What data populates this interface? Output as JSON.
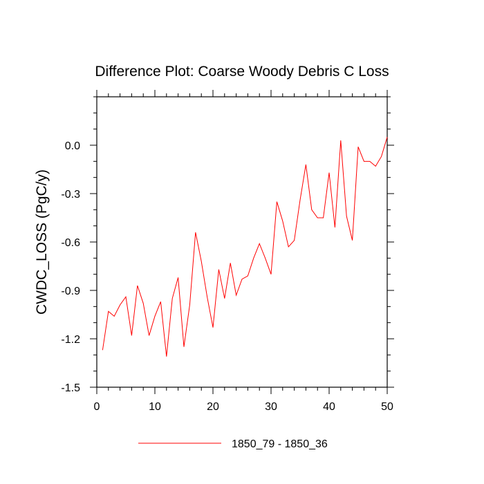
{
  "chart_data": {
    "type": "line",
    "title": "Difference Plot: Coarse Woody Debris C Loss",
    "xlabel": "",
    "ylabel": "CWDC_LOSS  (PgC/y)",
    "xlim": [
      0,
      50
    ],
    "ylim": [
      -1.5,
      0.3
    ],
    "xticks": [
      0,
      10,
      20,
      30,
      40,
      50
    ],
    "xtick_labels": [
      "0",
      "10",
      "20",
      "30",
      "40",
      "50"
    ],
    "yticks": [
      -1.5,
      -1.2,
      -0.9,
      -0.6,
      -0.3,
      0.0
    ],
    "ytick_labels": [
      "-1.5",
      "-1.2",
      "-0.9",
      "-0.6",
      "-0.3",
      "0.0"
    ],
    "legend_position": "bottom",
    "series": [
      {
        "name": "1850_79 - 1850_36",
        "color": "#ff0000",
        "x": [
          1,
          2,
          3,
          4,
          5,
          6,
          7,
          8,
          9,
          10,
          11,
          12,
          13,
          14,
          15,
          16,
          17,
          18,
          19,
          20,
          21,
          22,
          23,
          24,
          25,
          26,
          27,
          28,
          29,
          30,
          31,
          32,
          33,
          34,
          35,
          36,
          37,
          38,
          39,
          40,
          41,
          42,
          43,
          44,
          45,
          46,
          47,
          48,
          49,
          50
        ],
        "y": [
          -1.27,
          -1.03,
          -1.06,
          -0.99,
          -0.94,
          -1.18,
          -0.87,
          -0.98,
          -1.18,
          -1.06,
          -0.97,
          -1.31,
          -0.95,
          -0.82,
          -1.25,
          -0.99,
          -0.54,
          -0.72,
          -0.94,
          -1.13,
          -0.77,
          -0.95,
          -0.73,
          -0.93,
          -0.83,
          -0.81,
          -0.7,
          -0.61,
          -0.7,
          -0.8,
          -0.35,
          -0.47,
          -0.63,
          -0.59,
          -0.34,
          -0.12,
          -0.4,
          -0.45,
          -0.45,
          -0.17,
          -0.51,
          0.03,
          -0.44,
          -0.59,
          -0.01,
          -0.1,
          -0.1,
          -0.13,
          -0.07,
          0.05
        ]
      }
    ]
  }
}
